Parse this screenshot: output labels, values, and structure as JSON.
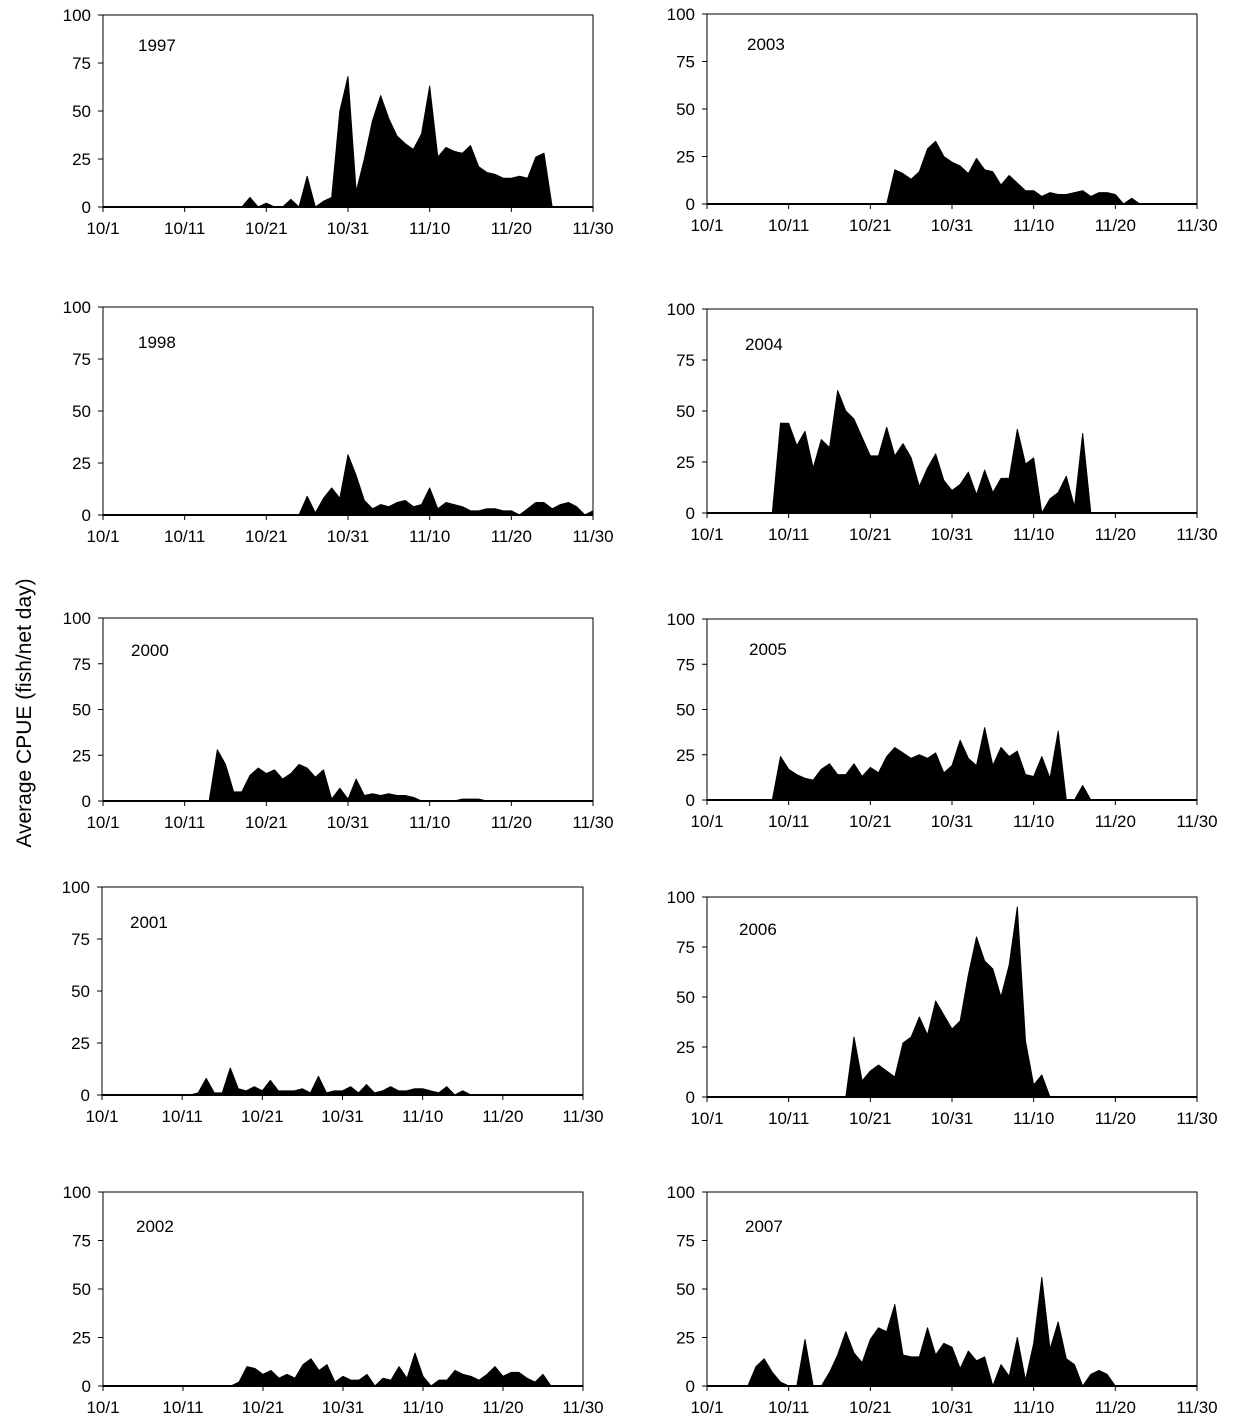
{
  "ylabel": "Average CPUE (fish/net day)",
  "style": {
    "fill_color": "#000000",
    "frame_color": "#000000"
  },
  "chart_data": [
    {
      "type": "area",
      "title": "1997",
      "ylim": [
        0,
        100
      ],
      "yticks": [
        "0",
        "25",
        "50",
        "75",
        "100"
      ],
      "x_tick_labels": [
        "10/1",
        "10/11",
        "10/21",
        "10/31",
        "11/10",
        "11/20",
        "11/30"
      ],
      "x_day_range": [
        0,
        60
      ],
      "series": [
        {
          "x": [
            0,
            17,
            18,
            19,
            20,
            21,
            22,
            23,
            24,
            25,
            26,
            27,
            28,
            29,
            30,
            31,
            32,
            33,
            34,
            35,
            36,
            37,
            38,
            39,
            40,
            41,
            42,
            43,
            44,
            45,
            46,
            47,
            48,
            49,
            50,
            51,
            52,
            53,
            54,
            55,
            60
          ],
          "y": [
            0,
            0,
            5,
            0,
            2,
            0,
            0,
            4,
            0,
            16,
            0,
            3,
            5,
            50,
            68,
            8,
            25,
            45,
            58,
            46,
            37,
            33,
            30,
            38,
            63,
            26,
            31,
            29,
            28,
            32,
            21,
            18,
            17,
            15,
            15,
            16,
            15,
            26,
            28,
            0,
            0
          ]
        }
      ]
    },
    {
      "type": "area",
      "title": "2003",
      "ylim": [
        0,
        100
      ],
      "yticks": [
        "0",
        "25",
        "50",
        "75",
        "100"
      ],
      "x_tick_labels": [
        "10/1",
        "10/11",
        "10/21",
        "10/31",
        "11/10",
        "11/20",
        "11/30"
      ],
      "x_day_range": [
        0,
        60
      ],
      "series": [
        {
          "x": [
            0,
            22,
            23,
            24,
            25,
            26,
            27,
            28,
            29,
            30,
            31,
            32,
            33,
            34,
            35,
            36,
            37,
            38,
            39,
            40,
            41,
            42,
            43,
            44,
            45,
            46,
            47,
            48,
            49,
            50,
            51,
            52,
            53,
            60
          ],
          "y": [
            0,
            0,
            18,
            16,
            13,
            17,
            29,
            33,
            25,
            22,
            20,
            16,
            24,
            18,
            17,
            10,
            15,
            11,
            7,
            7,
            4,
            6,
            5,
            5,
            6,
            7,
            4,
            6,
            6,
            5,
            0,
            3,
            0,
            0
          ]
        }
      ]
    },
    {
      "type": "area",
      "title": "1998",
      "ylim": [
        0,
        100
      ],
      "yticks": [
        "0",
        "25",
        "50",
        "75",
        "100"
      ],
      "x_tick_labels": [
        "10/1",
        "10/11",
        "10/21",
        "10/31",
        "11/10",
        "11/20",
        "11/30"
      ],
      "x_day_range": [
        0,
        60
      ],
      "series": [
        {
          "x": [
            0,
            24,
            25,
            26,
            27,
            28,
            29,
            30,
            31,
            32,
            33,
            34,
            35,
            36,
            37,
            38,
            39,
            40,
            41,
            42,
            43,
            44,
            45,
            46,
            47,
            48,
            49,
            50,
            51,
            52,
            53,
            54,
            55,
            56,
            57,
            58,
            59,
            60
          ],
          "y": [
            0,
            0,
            9,
            1,
            8,
            13,
            8,
            29,
            19,
            7,
            3,
            5,
            4,
            6,
            7,
            4,
            5,
            13,
            3,
            6,
            5,
            4,
            2,
            2,
            3,
            3,
            2,
            2,
            0,
            3,
            6,
            6,
            3,
            5,
            6,
            4,
            0,
            2
          ]
        }
      ]
    },
    {
      "type": "area",
      "title": "2004",
      "ylim": [
        0,
        100
      ],
      "yticks": [
        "0",
        "25",
        "50",
        "75",
        "100"
      ],
      "x_tick_labels": [
        "10/1",
        "10/11",
        "10/21",
        "10/31",
        "11/10",
        "11/20",
        "11/30"
      ],
      "x_day_range": [
        0,
        60
      ],
      "series": [
        {
          "x": [
            0,
            8,
            9,
            10,
            11,
            12,
            13,
            14,
            15,
            16,
            17,
            18,
            19,
            20,
            21,
            22,
            23,
            24,
            25,
            26,
            27,
            28,
            29,
            30,
            31,
            32,
            33,
            34,
            35,
            36,
            37,
            38,
            39,
            40,
            41,
            42,
            43,
            44,
            45,
            46,
            47,
            48,
            60
          ],
          "y": [
            0,
            0,
            44,
            44,
            33,
            40,
            22,
            36,
            32,
            60,
            50,
            46,
            37,
            28,
            28,
            42,
            28,
            34,
            27,
            13,
            22,
            29,
            16,
            11,
            14,
            20,
            9,
            21,
            10,
            17,
            17,
            41,
            24,
            27,
            0,
            7,
            10,
            18,
            3,
            39,
            0,
            0,
            0
          ]
        }
      ]
    },
    {
      "type": "area",
      "title": "2000",
      "ylim": [
        0,
        100
      ],
      "yticks": [
        "0",
        "25",
        "50",
        "75",
        "100"
      ],
      "x_tick_labels": [
        "10/1",
        "10/11",
        "10/21",
        "10/31",
        "11/10",
        "11/20",
        "11/30"
      ],
      "x_day_range": [
        0,
        60
      ],
      "series": [
        {
          "x": [
            0,
            13,
            14,
            15,
            16,
            17,
            18,
            19,
            20,
            21,
            22,
            23,
            24,
            25,
            26,
            27,
            28,
            29,
            30,
            31,
            32,
            33,
            34,
            35,
            36,
            37,
            38,
            39,
            40,
            43,
            44,
            45,
            46,
            47,
            60
          ],
          "y": [
            0,
            0,
            28,
            20,
            5,
            5,
            14,
            18,
            15,
            17,
            12,
            15,
            20,
            18,
            13,
            17,
            1,
            7,
            1,
            12,
            3,
            4,
            3,
            4,
            3,
            3,
            2,
            0,
            0,
            0,
            1,
            1,
            1,
            0,
            0
          ]
        }
      ]
    },
    {
      "type": "area",
      "title": "2005",
      "ylim": [
        0,
        100
      ],
      "yticks": [
        "0",
        "25",
        "50",
        "75",
        "100"
      ],
      "x_tick_labels": [
        "10/1",
        "10/11",
        "10/21",
        "10/31",
        "11/10",
        "11/20",
        "11/30"
      ],
      "x_day_range": [
        0,
        60
      ],
      "series": [
        {
          "x": [
            0,
            8,
            9,
            10,
            11,
            12,
            13,
            14,
            15,
            16,
            17,
            18,
            19,
            20,
            21,
            22,
            23,
            24,
            25,
            26,
            27,
            28,
            29,
            30,
            31,
            32,
            33,
            34,
            35,
            36,
            37,
            38,
            39,
            40,
            41,
            42,
            43,
            44,
            45,
            46,
            47,
            60
          ],
          "y": [
            0,
            0,
            24,
            17,
            14,
            12,
            11,
            17,
            20,
            14,
            14,
            20,
            13,
            18,
            15,
            24,
            29,
            26,
            23,
            25,
            23,
            26,
            15,
            19,
            33,
            23,
            19,
            40,
            19,
            29,
            24,
            27,
            14,
            13,
            24,
            12,
            38,
            0,
            0,
            8,
            0,
            0
          ]
        }
      ]
    },
    {
      "type": "area",
      "title": "2001",
      "ylim": [
        0,
        100
      ],
      "yticks": [
        "0",
        "25",
        "50",
        "75",
        "100"
      ],
      "x_tick_labels": [
        "10/1",
        "10/11",
        "10/21",
        "10/31",
        "11/10",
        "11/20",
        "11/30"
      ],
      "x_day_range": [
        0,
        60
      ],
      "series": [
        {
          "x": [
            0,
            11,
            12,
            13,
            14,
            15,
            16,
            17,
            18,
            19,
            20,
            21,
            22,
            23,
            24,
            25,
            26,
            27,
            28,
            29,
            30,
            31,
            32,
            33,
            34,
            35,
            36,
            37,
            38,
            39,
            40,
            41,
            42,
            43,
            44,
            45,
            46,
            47,
            60
          ],
          "y": [
            0,
            0,
            1,
            8,
            1,
            1,
            13,
            3,
            2,
            4,
            2,
            7,
            2,
            2,
            2,
            3,
            1,
            9,
            1,
            2,
            2,
            4,
            1,
            5,
            1,
            2,
            4,
            2,
            2,
            3,
            3,
            2,
            1,
            4,
            0,
            2,
            0,
            0,
            0
          ]
        }
      ]
    },
    {
      "type": "area",
      "title": "2006",
      "ylim": [
        0,
        100
      ],
      "yticks": [
        "0",
        "25",
        "50",
        "75",
        "100"
      ],
      "x_tick_labels": [
        "10/1",
        "10/11",
        "10/21",
        "10/31",
        "11/10",
        "11/20",
        "11/30"
      ],
      "x_day_range": [
        0,
        60
      ],
      "series": [
        {
          "x": [
            0,
            17,
            18,
            19,
            20,
            21,
            22,
            23,
            24,
            25,
            26,
            27,
            28,
            29,
            30,
            31,
            32,
            33,
            34,
            35,
            36,
            37,
            38,
            39,
            40,
            41,
            42,
            60
          ],
          "y": [
            0,
            0,
            30,
            8,
            13,
            16,
            13,
            10,
            27,
            30,
            40,
            31,
            48,
            41,
            34,
            38,
            61,
            80,
            68,
            64,
            50,
            66,
            95,
            28,
            6,
            11,
            0,
            0
          ]
        }
      ]
    },
    {
      "type": "area",
      "title": "2002",
      "ylim": [
        0,
        100
      ],
      "yticks": [
        "0",
        "25",
        "50",
        "75",
        "100"
      ],
      "x_tick_labels": [
        "10/1",
        "10/11",
        "10/21",
        "10/31",
        "11/10",
        "11/20",
        "11/30"
      ],
      "x_day_range": [
        0,
        60
      ],
      "series": [
        {
          "x": [
            0,
            16,
            17,
            18,
            19,
            20,
            21,
            22,
            23,
            24,
            25,
            26,
            27,
            28,
            29,
            30,
            31,
            32,
            33,
            34,
            35,
            36,
            37,
            38,
            39,
            40,
            41,
            42,
            43,
            44,
            45,
            46,
            47,
            48,
            49,
            50,
            51,
            52,
            53,
            54,
            55,
            56,
            57,
            60
          ],
          "y": [
            0,
            0,
            2,
            10,
            9,
            6,
            8,
            4,
            6,
            4,
            11,
            14,
            8,
            11,
            2,
            5,
            3,
            3,
            6,
            0,
            4,
            3,
            10,
            4,
            17,
            5,
            0,
            3,
            3,
            8,
            6,
            5,
            3,
            6,
            10,
            5,
            7,
            7,
            4,
            2,
            6,
            0,
            0,
            0
          ]
        }
      ]
    },
    {
      "type": "area",
      "title": "2007",
      "ylim": [
        0,
        100
      ],
      "yticks": [
        "0",
        "25",
        "50",
        "75",
        "100"
      ],
      "x_tick_labels": [
        "10/1",
        "10/11",
        "10/21",
        "10/31",
        "11/10",
        "11/20",
        "11/30"
      ],
      "x_day_range": [
        0,
        60
      ],
      "series": [
        {
          "x": [
            0,
            5,
            6,
            7,
            8,
            9,
            10,
            11,
            12,
            13,
            14,
            15,
            16,
            17,
            18,
            19,
            20,
            21,
            22,
            23,
            24,
            25,
            26,
            27,
            28,
            29,
            30,
            31,
            32,
            33,
            34,
            35,
            36,
            37,
            38,
            39,
            40,
            41,
            42,
            43,
            44,
            45,
            46,
            47,
            48,
            49,
            50,
            51,
            60
          ],
          "y": [
            0,
            0,
            10,
            14,
            7,
            2,
            0,
            0,
            24,
            0,
            0,
            7,
            16,
            28,
            17,
            12,
            24,
            30,
            28,
            42,
            16,
            15,
            15,
            30,
            16,
            22,
            20,
            9,
            18,
            13,
            15,
            0,
            11,
            5,
            25,
            3,
            22,
            56,
            19,
            33,
            14,
            11,
            0,
            6,
            8,
            6,
            0,
            0,
            0
          ]
        }
      ]
    }
  ]
}
